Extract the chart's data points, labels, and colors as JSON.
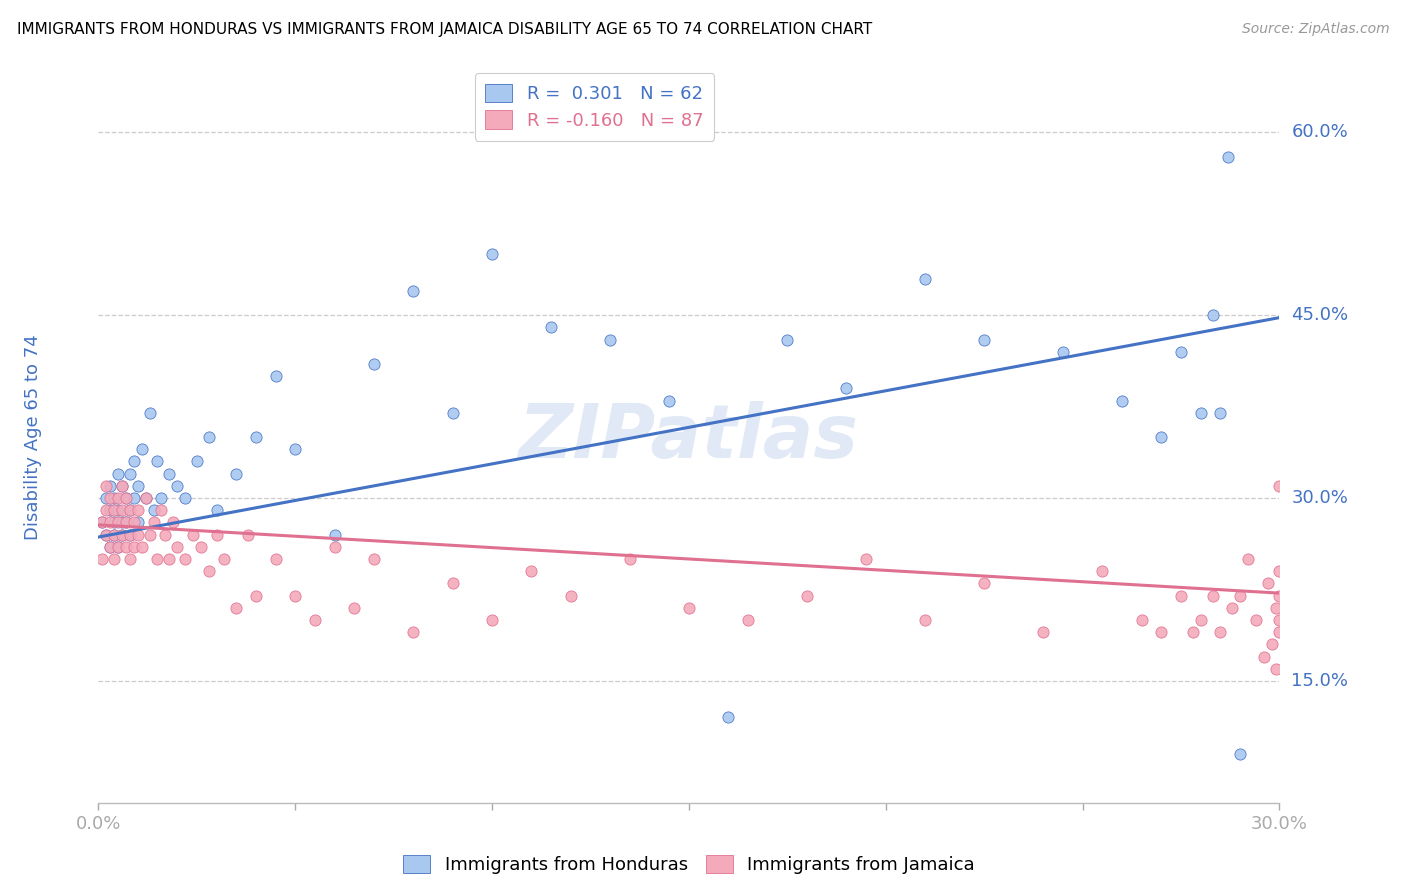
{
  "title": "IMMIGRANTS FROM HONDURAS VS IMMIGRANTS FROM JAMAICA DISABILITY AGE 65 TO 74 CORRELATION CHART",
  "source": "Source: ZipAtlas.com",
  "ylabel": "Disability Age 65 to 74",
  "xlim": [
    0.0,
    0.3
  ],
  "ylim": [
    0.05,
    0.65
  ],
  "yticks": [
    0.15,
    0.3,
    0.45,
    0.6
  ],
  "ytick_labels": [
    "15.0%",
    "30.0%",
    "45.0%",
    "60.0%"
  ],
  "xticks": [
    0.0,
    0.05,
    0.1,
    0.15,
    0.2,
    0.25,
    0.3
  ],
  "xtick_labels": [
    "0.0%",
    "",
    "",
    "",
    "",
    "",
    "30.0%"
  ],
  "honduras_R": 0.301,
  "honduras_N": 62,
  "jamaica_R": -0.16,
  "jamaica_N": 87,
  "color_honduras_fill": "#A8C8F0",
  "color_honduras_edge": "#4472C4",
  "color_jamaica_fill": "#F4AABB",
  "color_jamaica_edge": "#E07090",
  "color_trend_honduras": "#4472C4",
  "color_trend_jamaica": "#E07090",
  "color_axis_text": "#4472C4",
  "watermark": "ZIPatlas",
  "honduras_x": [
    0.001,
    0.002,
    0.002,
    0.003,
    0.003,
    0.003,
    0.004,
    0.004,
    0.004,
    0.005,
    0.005,
    0.005,
    0.006,
    0.006,
    0.006,
    0.007,
    0.007,
    0.008,
    0.008,
    0.008,
    0.009,
    0.009,
    0.01,
    0.01,
    0.011,
    0.012,
    0.013,
    0.014,
    0.015,
    0.016,
    0.018,
    0.02,
    0.022,
    0.025,
    0.028,
    0.03,
    0.035,
    0.04,
    0.045,
    0.05,
    0.06,
    0.07,
    0.08,
    0.09,
    0.1,
    0.115,
    0.13,
    0.145,
    0.16,
    0.175,
    0.19,
    0.21,
    0.225,
    0.245,
    0.26,
    0.27,
    0.275,
    0.28,
    0.283,
    0.285,
    0.287,
    0.29
  ],
  "honduras_y": [
    0.28,
    0.27,
    0.3,
    0.29,
    0.31,
    0.26,
    0.28,
    0.3,
    0.27,
    0.29,
    0.26,
    0.32,
    0.28,
    0.31,
    0.27,
    0.3,
    0.28,
    0.29,
    0.27,
    0.32,
    0.3,
    0.33,
    0.28,
    0.31,
    0.34,
    0.3,
    0.37,
    0.29,
    0.33,
    0.3,
    0.32,
    0.31,
    0.3,
    0.33,
    0.35,
    0.29,
    0.32,
    0.35,
    0.4,
    0.34,
    0.27,
    0.41,
    0.47,
    0.37,
    0.5,
    0.44,
    0.43,
    0.38,
    0.12,
    0.43,
    0.39,
    0.48,
    0.43,
    0.42,
    0.38,
    0.35,
    0.42,
    0.37,
    0.45,
    0.37,
    0.58,
    0.09
  ],
  "jamaica_x": [
    0.001,
    0.001,
    0.002,
    0.002,
    0.002,
    0.003,
    0.003,
    0.003,
    0.004,
    0.004,
    0.004,
    0.005,
    0.005,
    0.005,
    0.006,
    0.006,
    0.006,
    0.007,
    0.007,
    0.007,
    0.008,
    0.008,
    0.008,
    0.009,
    0.009,
    0.01,
    0.01,
    0.011,
    0.012,
    0.013,
    0.014,
    0.015,
    0.016,
    0.017,
    0.018,
    0.019,
    0.02,
    0.022,
    0.024,
    0.026,
    0.028,
    0.03,
    0.032,
    0.035,
    0.038,
    0.04,
    0.045,
    0.05,
    0.055,
    0.06,
    0.065,
    0.07,
    0.08,
    0.09,
    0.1,
    0.11,
    0.12,
    0.135,
    0.15,
    0.165,
    0.18,
    0.195,
    0.21,
    0.225,
    0.24,
    0.255,
    0.265,
    0.27,
    0.275,
    0.278,
    0.28,
    0.283,
    0.285,
    0.288,
    0.29,
    0.292,
    0.294,
    0.296,
    0.297,
    0.298,
    0.299,
    0.299,
    0.3,
    0.3,
    0.3,
    0.3,
    0.3
  ],
  "jamaica_y": [
    0.28,
    0.25,
    0.29,
    0.27,
    0.31,
    0.26,
    0.3,
    0.28,
    0.27,
    0.29,
    0.25,
    0.3,
    0.28,
    0.26,
    0.29,
    0.27,
    0.31,
    0.26,
    0.28,
    0.3,
    0.27,
    0.29,
    0.25,
    0.28,
    0.26,
    0.27,
    0.29,
    0.26,
    0.3,
    0.27,
    0.28,
    0.25,
    0.29,
    0.27,
    0.25,
    0.28,
    0.26,
    0.25,
    0.27,
    0.26,
    0.24,
    0.27,
    0.25,
    0.21,
    0.27,
    0.22,
    0.25,
    0.22,
    0.2,
    0.26,
    0.21,
    0.25,
    0.19,
    0.23,
    0.2,
    0.24,
    0.22,
    0.25,
    0.21,
    0.2,
    0.22,
    0.25,
    0.2,
    0.23,
    0.19,
    0.24,
    0.2,
    0.19,
    0.22,
    0.19,
    0.2,
    0.22,
    0.19,
    0.21,
    0.22,
    0.25,
    0.2,
    0.17,
    0.23,
    0.18,
    0.16,
    0.21,
    0.22,
    0.19,
    0.24,
    0.2,
    0.31
  ]
}
